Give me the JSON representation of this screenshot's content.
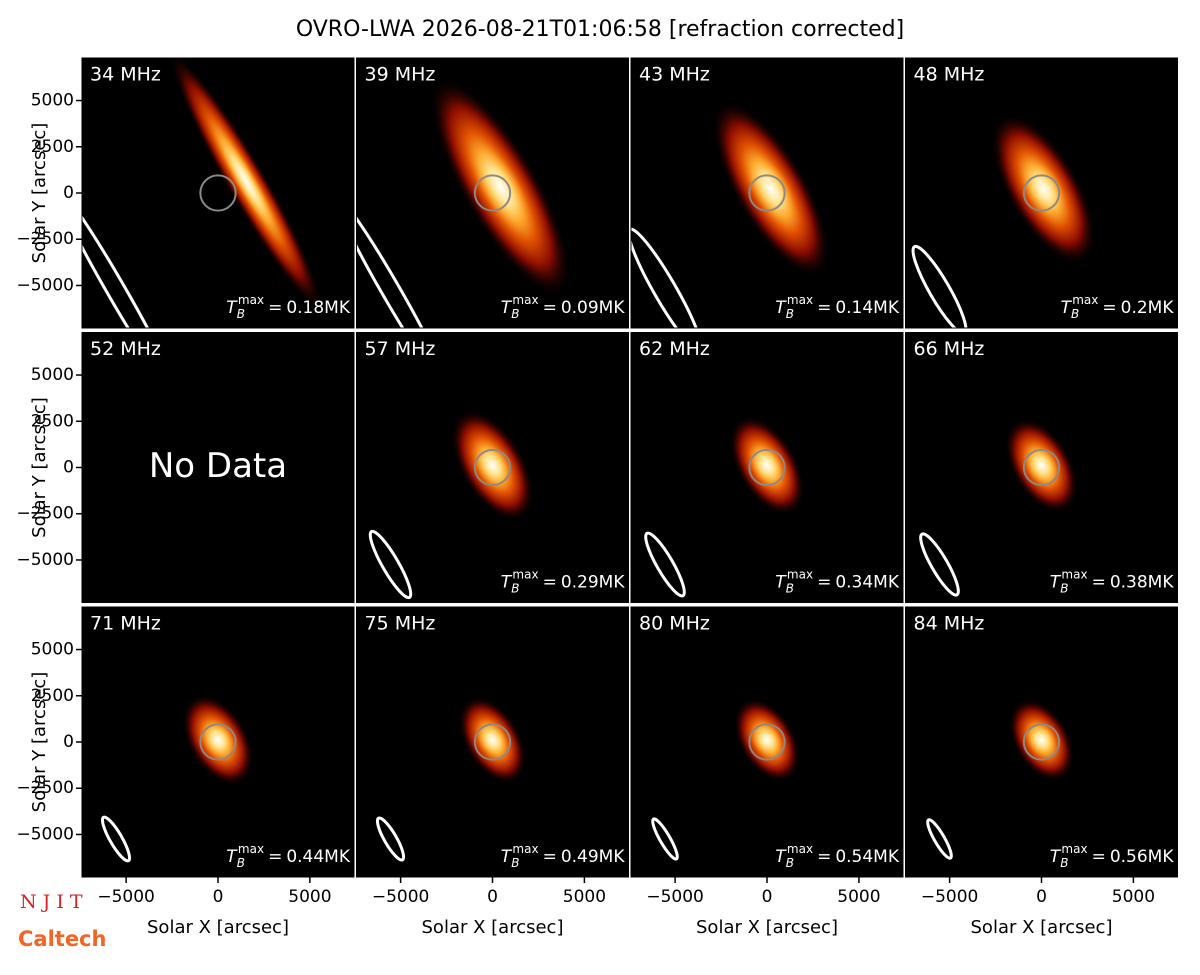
{
  "chart_data": {
    "type": "image-grid",
    "title": "OVRO-LWA 2026-08-21T01:06:58 [refraction corrected]",
    "xlabel": "Solar X [arcsec]",
    "ylabel": "Solar Y [arcsec]",
    "categories": [
      "34 MHz",
      "39 MHz",
      "43 MHz",
      "48 MHz",
      "52 MHz",
      "57 MHz",
      "62 MHz",
      "66 MHz",
      "71 MHz",
      "75 MHz",
      "80 MHz",
      "84 MHz"
    ],
    "values": [
      0.18,
      0.09,
      0.14,
      0.2,
      null,
      0.29,
      0.34,
      0.38,
      0.44,
      0.49,
      0.54,
      0.56
    ],
    "value_labels": [
      "0.18MK",
      "0.09MK",
      "0.14MK",
      "0.2MK",
      null,
      "0.29MK",
      "0.34MK",
      "0.38MK",
      "0.44MK",
      "0.49MK",
      "0.54MK",
      "0.56MK"
    ],
    "tb_symbol": {
      "main": "T",
      "sub": "B",
      "sup": "max",
      "equals": "="
    },
    "no_data_label": "No Data",
    "xlim": [
      -7400,
      7400
    ],
    "ylim": [
      -7300,
      7300
    ],
    "xticks": [
      {
        "value": -5000,
        "label": "−5000"
      },
      0,
      5000
    ],
    "yticks": [
      {
        "value": -5000,
        "label": "−5000"
      },
      {
        "value": -2500,
        "label": "−2500"
      },
      0,
      2500,
      5000
    ],
    "grid": false
  },
  "logos": [
    "N J I T",
    "Caltech"
  ]
}
